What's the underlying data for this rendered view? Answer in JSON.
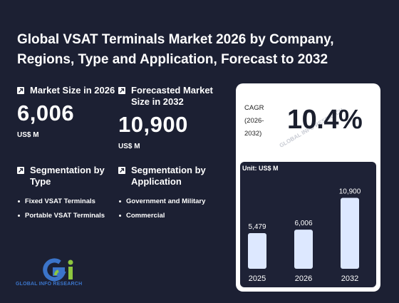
{
  "title": "Global VSAT Terminals Market 2026 by Company, Regions, Type and Application, Forecast to 2032",
  "stats": {
    "market_size": {
      "label": "Market Size in 2026",
      "value": "6,006",
      "unit": "US$ M",
      "icon": "arrow-icon"
    },
    "forecast": {
      "label": "Forecasted Market Size in 2032",
      "value": "10,900",
      "unit": "US$ M",
      "icon": "arrow-icon"
    }
  },
  "cagr": {
    "label_line1": "CAGR",
    "label_line2": "(2026-",
    "label_line3": "2032)",
    "value": "10.4%"
  },
  "segmentation_type": {
    "label": "Segmentation by Type",
    "items": [
      "Fixed VSAT Terminals",
      "Portable VSAT Terminals"
    ]
  },
  "segmentation_application": {
    "label": "Segmentation by Application",
    "items": [
      "Government and Military",
      "Commercial"
    ]
  },
  "logo": {
    "text": "GLOBAL INFO RESEARCH",
    "watermark": "GLOBAL INFO RESEARCH"
  },
  "colors": {
    "background": "#1c2033",
    "panel": "#1e2236",
    "bar": "#dde8ff",
    "logo_blue": "#3b74c9",
    "logo_green": "#8dc63f"
  },
  "chart_data": {
    "type": "bar",
    "unit_label": "Unit: US$ M",
    "categories": [
      "2025",
      "2026",
      "2032"
    ],
    "values": [
      5479,
      6006,
      10900
    ],
    "value_labels": [
      "5,479",
      "6,006",
      "10,900"
    ],
    "ylim": [
      0,
      11500
    ],
    "grid": false
  }
}
